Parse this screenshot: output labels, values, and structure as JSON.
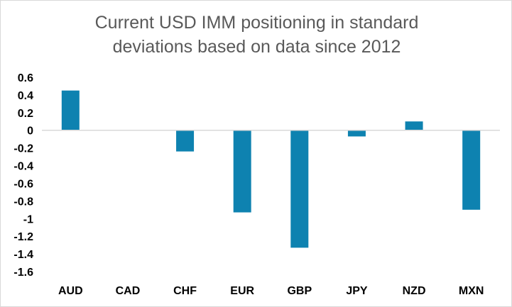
{
  "chart_data": {
    "type": "bar",
    "title_lines": [
      "Current USD IMM positioning in standard",
      "deviations based on data since 2012"
    ],
    "categories": [
      "AUD",
      "CAD",
      "CHF",
      "EUR",
      "GBP",
      "JPY",
      "NZD",
      "MXN"
    ],
    "values": [
      0.45,
      0.0,
      -0.24,
      -0.93,
      -1.33,
      -0.07,
      0.1,
      -0.9
    ],
    "yticks": [
      "0.6",
      "0.4",
      "0.2",
      "0",
      "-0.2",
      "-0.4",
      "-0.6",
      "-0.8",
      "-1",
      "-1.2",
      "-1.4",
      "-1.6"
    ],
    "ylim": [
      -1.6,
      0.6
    ],
    "grid": false,
    "legend": "none",
    "colors": {
      "bar": "#0e82b0",
      "axis": "#d9d9d9"
    }
  }
}
